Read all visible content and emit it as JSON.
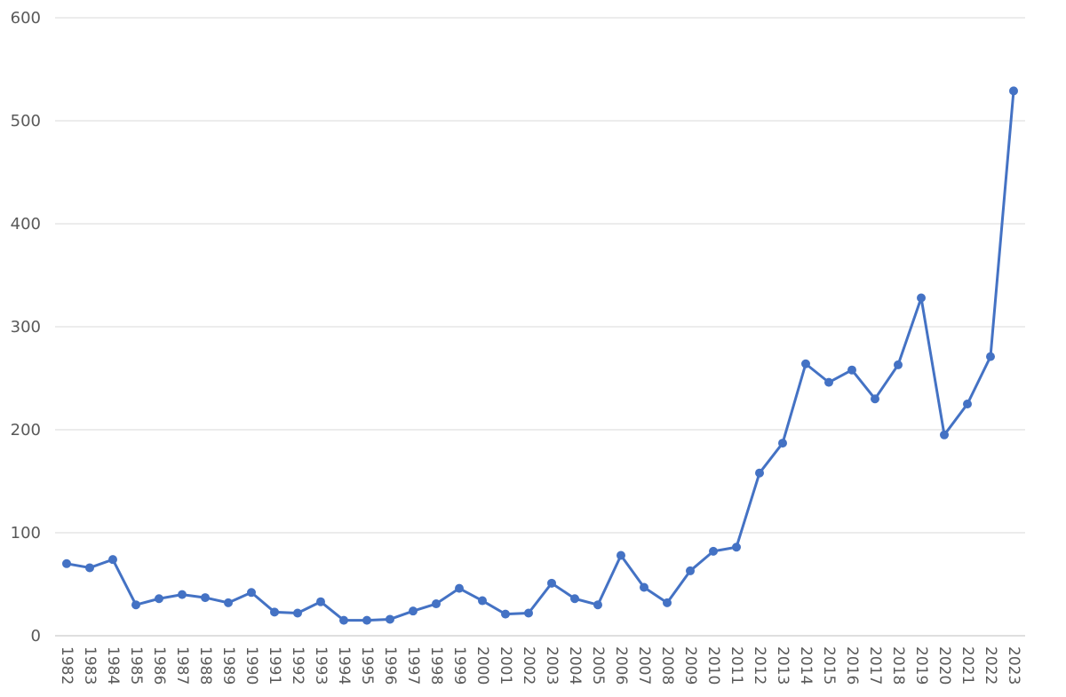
{
  "chart_data": {
    "type": "line",
    "title": "",
    "xlabel": "",
    "ylabel": "",
    "ylim": [
      0,
      600
    ],
    "yticks": [
      0,
      100,
      200,
      300,
      400,
      500,
      600
    ],
    "grid": true,
    "legend": "none",
    "series_color": "#4472c4",
    "categories": [
      "1982",
      "1983",
      "1984",
      "1985",
      "1986",
      "1987",
      "1988",
      "1989",
      "1990",
      "1991",
      "1992",
      "1993",
      "1994",
      "1995",
      "1996",
      "1997",
      "1998",
      "1999",
      "2000",
      "2001",
      "2002",
      "2003",
      "2004",
      "2005",
      "2006",
      "2007",
      "2008",
      "2009",
      "2010",
      "2011",
      "2012",
      "2013",
      "2014",
      "2015",
      "2016",
      "2017",
      "2018",
      "2019",
      "2020",
      "2021",
      "2022",
      "2023"
    ],
    "values": [
      70,
      66,
      74,
      30,
      36,
      40,
      37,
      32,
      42,
      23,
      22,
      33,
      15,
      15,
      16,
      24,
      31,
      46,
      34,
      21,
      22,
      51,
      36,
      30,
      78,
      47,
      32,
      63,
      82,
      86,
      158,
      187,
      264,
      246,
      258,
      230,
      263,
      328,
      195,
      225,
      271,
      529
    ]
  }
}
